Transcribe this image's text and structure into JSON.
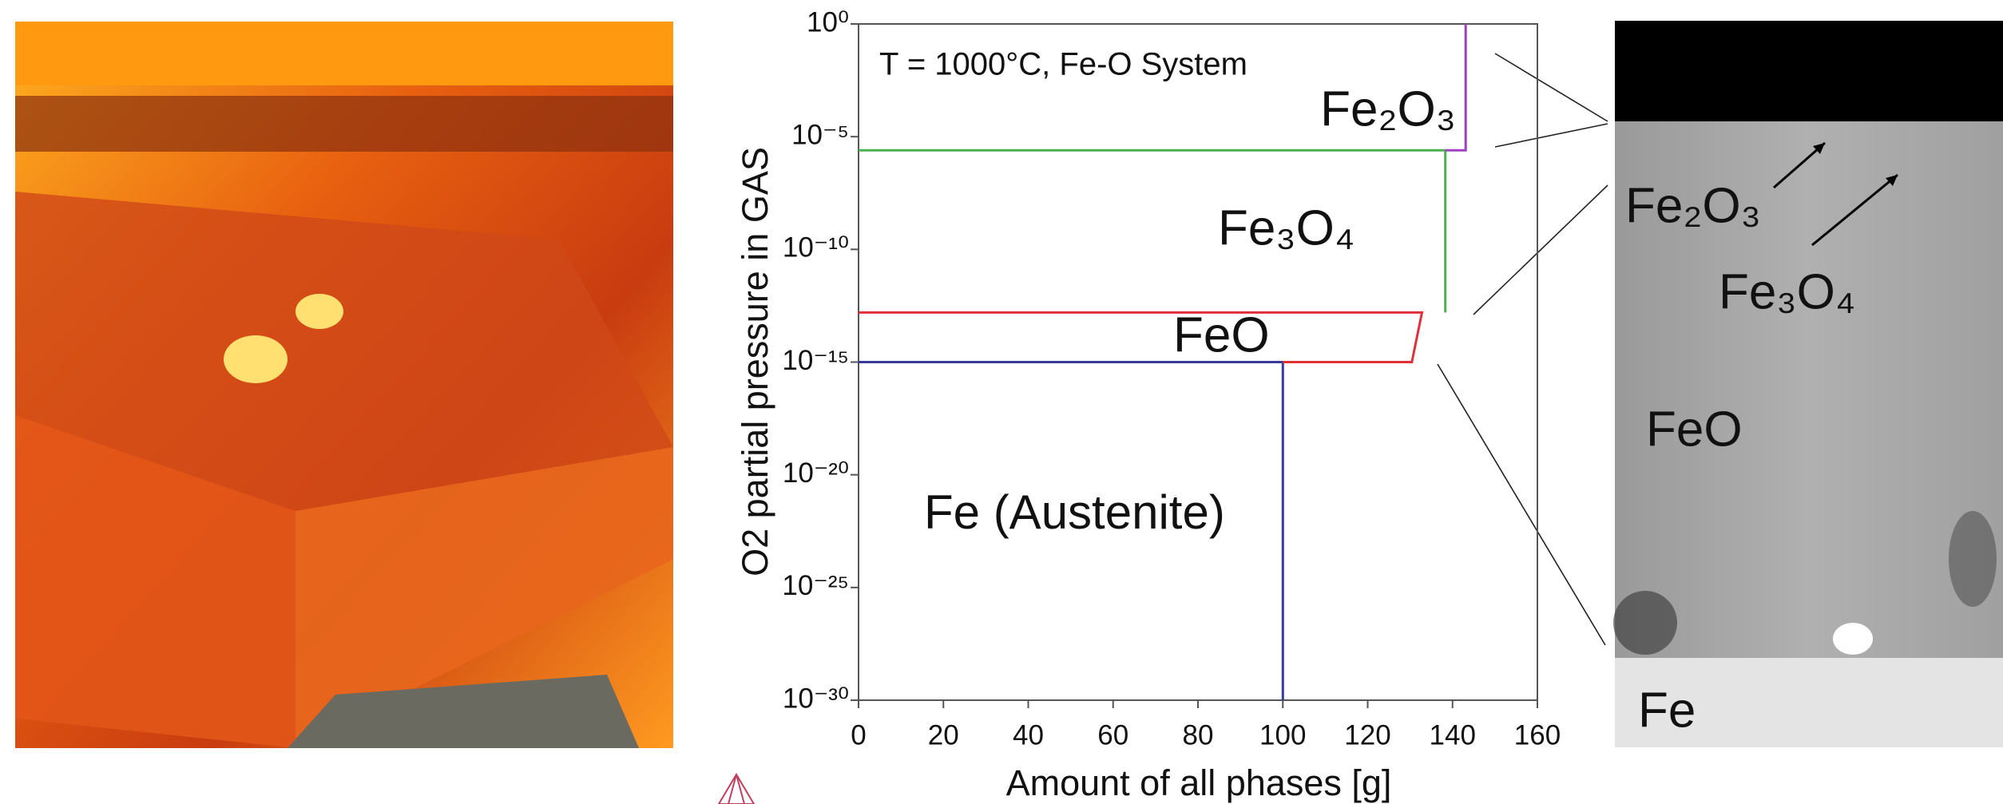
{
  "chart_data": {
    "type": "line",
    "annotations": [
      "T = 1000°C, Fe-O System",
      "Fe₂O₃",
      "Fe₃O₄",
      "FeO",
      "Fe (Austenite)"
    ],
    "x_label": "Amount of all phases [g]",
    "y_label": "O2 partial pressure in GAS",
    "xlim": [
      0,
      160
    ],
    "xticks": [
      0,
      20,
      40,
      60,
      80,
      100,
      120,
      140,
      160
    ],
    "ylim": [
      1e-30,
      1
    ],
    "y_log": true,
    "yticks": [
      {
        "value": 1,
        "label": "10⁰"
      },
      {
        "value": 1e-05,
        "label": "10⁻⁵"
      },
      {
        "value": 1e-10,
        "label": "10⁻¹⁰"
      },
      {
        "value": 1e-15,
        "label": "10⁻¹⁵"
      },
      {
        "value": 1e-20,
        "label": "10⁻²⁰"
      },
      {
        "value": 1e-25,
        "label": "10⁻²⁵"
      },
      {
        "value": 1e-30,
        "label": "10⁻³⁰"
      }
    ],
    "series": [
      {
        "color": "#3a3a9a",
        "x": [
          100,
          100,
          0
        ],
        "y": [
          1e-30,
          1e-15,
          1e-15
        ]
      },
      {
        "color": "#e0303a",
        "x": [
          0,
          132.8,
          130.4,
          100
        ],
        "y": [
          1.58e-13,
          1.58e-13,
          1e-15,
          1e-15
        ]
      },
      {
        "color": "#4caf50",
        "x": [
          0,
          138.3,
          138.3
        ],
        "y": [
          2.5e-06,
          2.5e-06,
          1.58e-13
        ]
      },
      {
        "color": "#a040c0",
        "x": [
          138.3,
          143.1,
          143.1
        ],
        "y": [
          2.5e-06,
          2.5e-06,
          1
        ]
      }
    ]
  },
  "micrograph": {
    "labels": [
      "Fe₂O₃",
      "Fe₃O₄",
      "FeO",
      "Fe"
    ]
  }
}
